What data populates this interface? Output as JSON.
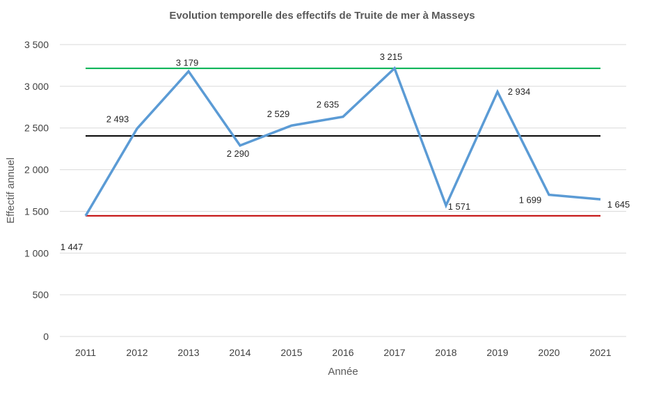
{
  "chart_data": {
    "type": "line",
    "title": "Evolution temporelle des effectifs de Truite de mer à Masseys",
    "xlabel": "Année",
    "ylabel": "Effectif annuel",
    "categories": [
      "2011",
      "2012",
      "2013",
      "2014",
      "2015",
      "2016",
      "2017",
      "2018",
      "2019",
      "2020",
      "2021"
    ],
    "series": [
      {
        "values": [
          1447,
          2493,
          3179,
          2290,
          2529,
          2635,
          3215,
          1571,
          2934,
          1699,
          1645
        ],
        "data_labels": [
          "1 447",
          "2 493",
          "3 179",
          "2 290",
          "2 529",
          "2 635",
          "3 215",
          "1 571",
          "2 934",
          "1 699",
          "1 645"
        ],
        "color": "#5b9bd5"
      }
    ],
    "reference_lines": [
      {
        "value": 3215,
        "color": "#00b050"
      },
      {
        "value": 2405,
        "color": "#000000"
      },
      {
        "value": 1447,
        "color": "#c00000"
      }
    ],
    "ylim": [
      0,
      3500
    ],
    "yticks": [
      0,
      500,
      1000,
      1500,
      2000,
      2500,
      3000,
      3500
    ],
    "ytick_labels": [
      "0",
      "500",
      "1 000",
      "1 500",
      "2 000",
      "2 500",
      "3 000",
      "3 500"
    ],
    "grid": true,
    "legend": "none",
    "colors": {
      "gridline": "#d9d9d9",
      "text": "#595959"
    }
  }
}
